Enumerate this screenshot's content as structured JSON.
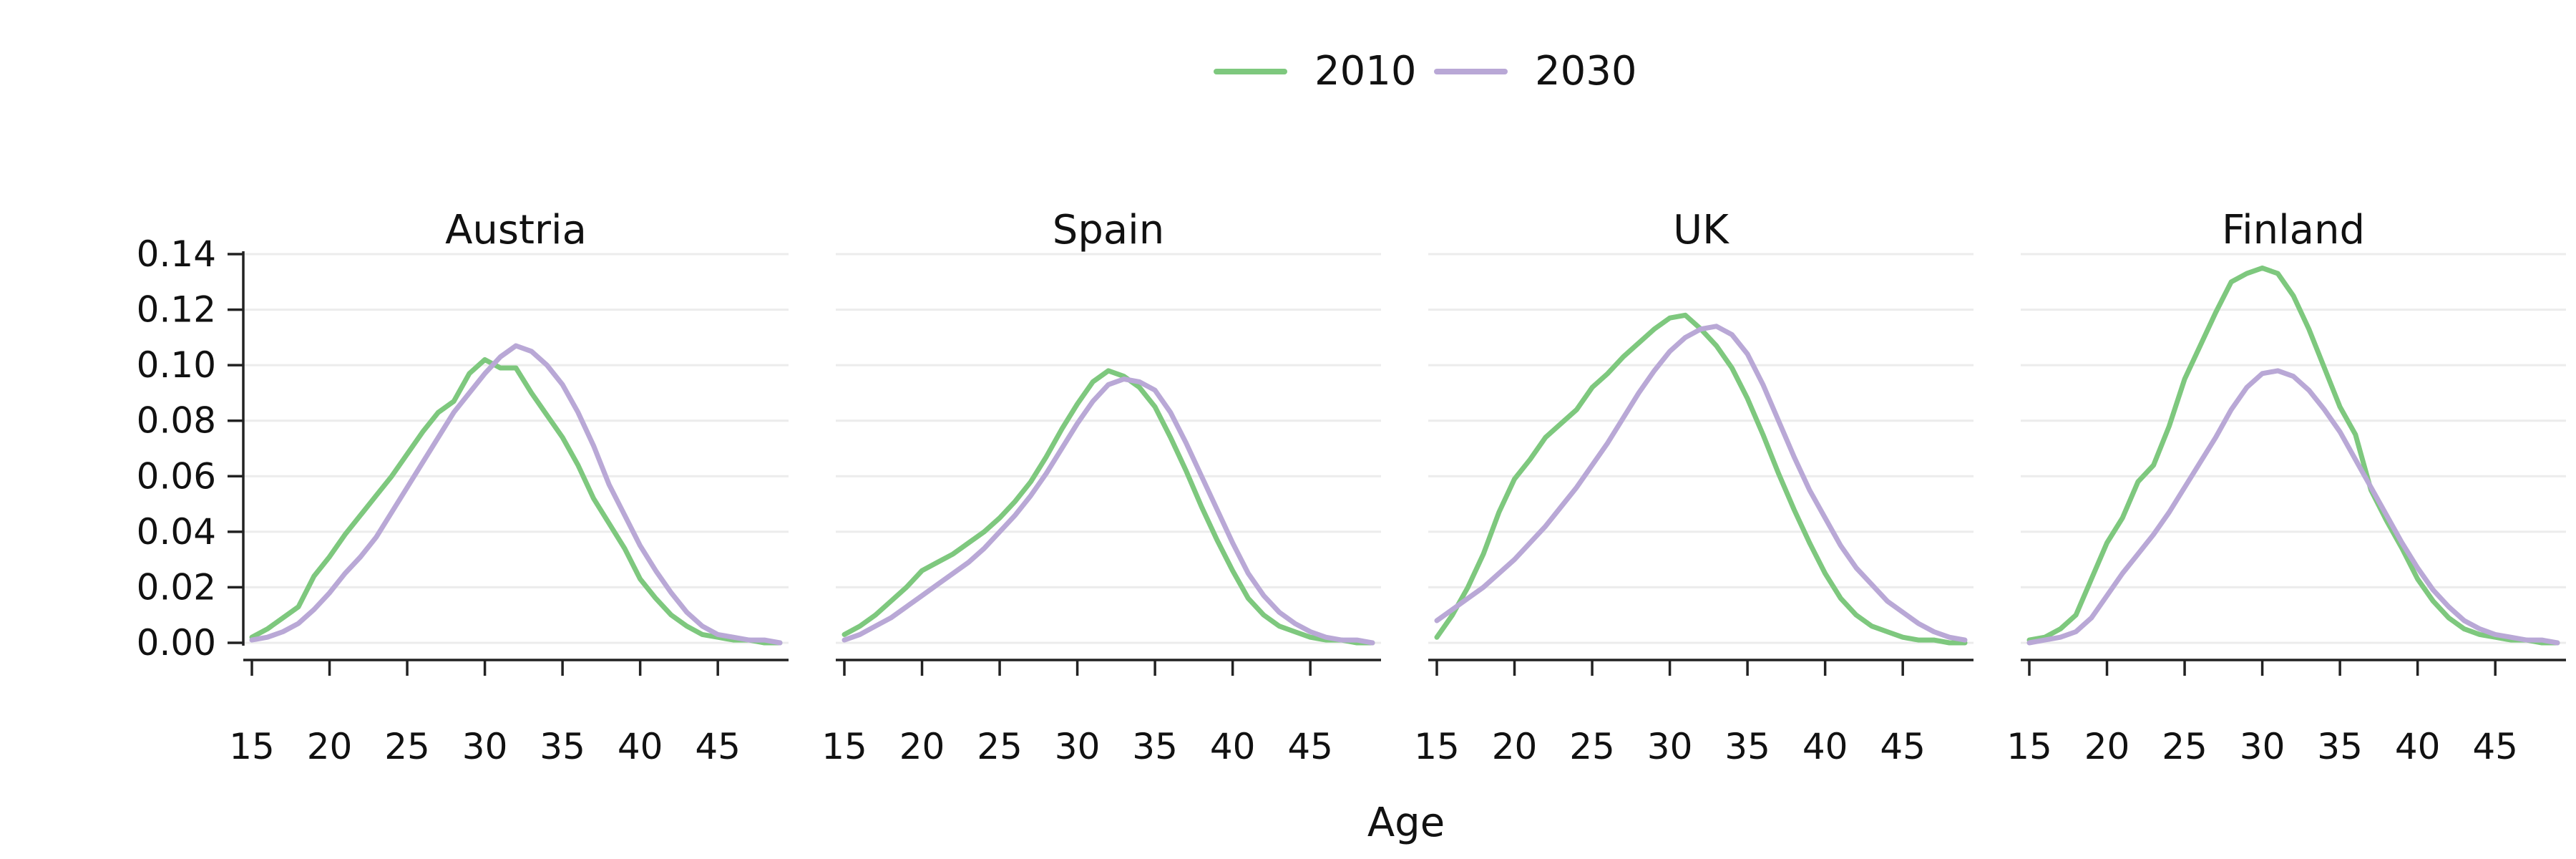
{
  "chart_data": {
    "type": "line",
    "xlabel": "Age",
    "ylabel": "",
    "xlim": [
      15,
      49
    ],
    "ylim": [
      0,
      0.14
    ],
    "x_ticks": [
      15,
      20,
      25,
      30,
      35,
      40,
      45
    ],
    "y_ticks": [
      "0.00",
      "0.02",
      "0.04",
      "0.06",
      "0.08",
      "0.10",
      "0.12",
      "0.14"
    ],
    "grid": true,
    "legend_position": "top-center",
    "x": [
      15,
      16,
      17,
      18,
      19,
      20,
      21,
      22,
      23,
      24,
      25,
      26,
      27,
      28,
      29,
      30,
      31,
      32,
      33,
      34,
      35,
      36,
      37,
      38,
      39,
      40,
      41,
      42,
      43,
      44,
      45,
      46,
      47,
      48,
      49
    ],
    "legend": [
      {
        "name": "2010",
        "color": "#7ec87e"
      },
      {
        "name": "2030",
        "color": "#b9a8d6"
      }
    ],
    "panels": [
      {
        "title": "Austria",
        "series": [
          {
            "name": "2010",
            "color": "#7ec87e",
            "values": [
              0.002,
              0.005,
              0.009,
              0.013,
              0.024,
              0.031,
              0.039,
              0.046,
              0.053,
              0.06,
              0.068,
              0.076,
              0.083,
              0.087,
              0.097,
              0.102,
              0.099,
              0.099,
              0.09,
              0.082,
              0.074,
              0.064,
              0.052,
              0.043,
              0.034,
              0.023,
              0.016,
              0.01,
              0.006,
              0.003,
              0.002,
              0.001,
              0.001,
              0.0,
              0.0
            ]
          },
          {
            "name": "2030",
            "color": "#b9a8d6",
            "values": [
              0.001,
              0.002,
              0.004,
              0.007,
              0.012,
              0.018,
              0.025,
              0.031,
              0.038,
              0.047,
              0.056,
              0.065,
              0.074,
              0.083,
              0.09,
              0.097,
              0.103,
              0.107,
              0.105,
              0.1,
              0.093,
              0.083,
              0.071,
              0.057,
              0.046,
              0.035,
              0.026,
              0.018,
              0.011,
              0.006,
              0.003,
              0.002,
              0.001,
              0.001,
              0.0
            ]
          }
        ]
      },
      {
        "title": "Spain",
        "series": [
          {
            "name": "2010",
            "color": "#7ec87e",
            "values": [
              0.003,
              0.006,
              0.01,
              0.015,
              0.02,
              0.026,
              0.029,
              0.032,
              0.036,
              0.04,
              0.045,
              0.051,
              0.058,
              0.067,
              0.077,
              0.086,
              0.094,
              0.098,
              0.096,
              0.092,
              0.085,
              0.074,
              0.062,
              0.049,
              0.037,
              0.026,
              0.016,
              0.01,
              0.006,
              0.004,
              0.002,
              0.001,
              0.001,
              0.0,
              0.0
            ]
          },
          {
            "name": "2030",
            "color": "#b9a8d6",
            "values": [
              0.001,
              0.003,
              0.006,
              0.009,
              0.013,
              0.017,
              0.021,
              0.025,
              0.029,
              0.034,
              0.04,
              0.046,
              0.053,
              0.061,
              0.07,
              0.079,
              0.087,
              0.093,
              0.095,
              0.094,
              0.091,
              0.083,
              0.072,
              0.06,
              0.048,
              0.036,
              0.025,
              0.017,
              0.011,
              0.007,
              0.004,
              0.002,
              0.001,
              0.001,
              0.0
            ]
          }
        ]
      },
      {
        "title": "UK",
        "series": [
          {
            "name": "2010",
            "color": "#7ec87e",
            "values": [
              0.002,
              0.01,
              0.02,
              0.032,
              0.047,
              0.059,
              0.066,
              0.074,
              0.079,
              0.084,
              0.092,
              0.097,
              0.103,
              0.108,
              0.113,
              0.117,
              0.118,
              0.113,
              0.107,
              0.099,
              0.088,
              0.075,
              0.061,
              0.048,
              0.036,
              0.025,
              0.016,
              0.01,
              0.006,
              0.004,
              0.002,
              0.001,
              0.001,
              0.0,
              0.0
            ]
          },
          {
            "name": "2030",
            "color": "#b9a8d6",
            "values": [
              0.008,
              0.012,
              0.016,
              0.02,
              0.025,
              0.03,
              0.036,
              0.042,
              0.049,
              0.056,
              0.064,
              0.072,
              0.081,
              0.09,
              0.098,
              0.105,
              0.11,
              0.113,
              0.114,
              0.111,
              0.104,
              0.093,
              0.08,
              0.067,
              0.055,
              0.045,
              0.035,
              0.027,
              0.021,
              0.015,
              0.011,
              0.007,
              0.004,
              0.002,
              0.001
            ]
          }
        ]
      },
      {
        "title": "Finland",
        "series": [
          {
            "name": "2010",
            "color": "#7ec87e",
            "values": [
              0.001,
              0.002,
              0.005,
              0.01,
              0.023,
              0.036,
              0.045,
              0.058,
              0.064,
              0.078,
              0.095,
              0.107,
              0.119,
              0.13,
              0.133,
              0.135,
              0.133,
              0.125,
              0.113,
              0.099,
              0.085,
              0.075,
              0.055,
              0.044,
              0.034,
              0.023,
              0.015,
              0.009,
              0.005,
              0.003,
              0.002,
              0.001,
              0.001,
              0.0,
              0.0
            ]
          },
          {
            "name": "2030",
            "color": "#b9a8d6",
            "values": [
              0.0,
              0.001,
              0.002,
              0.004,
              0.009,
              0.017,
              0.025,
              0.032,
              0.039,
              0.047,
              0.056,
              0.065,
              0.074,
              0.084,
              0.092,
              0.097,
              0.098,
              0.096,
              0.091,
              0.084,
              0.076,
              0.066,
              0.056,
              0.046,
              0.036,
              0.027,
              0.019,
              0.013,
              0.008,
              0.005,
              0.003,
              0.002,
              0.001,
              0.001,
              0.0
            ]
          }
        ]
      }
    ]
  }
}
